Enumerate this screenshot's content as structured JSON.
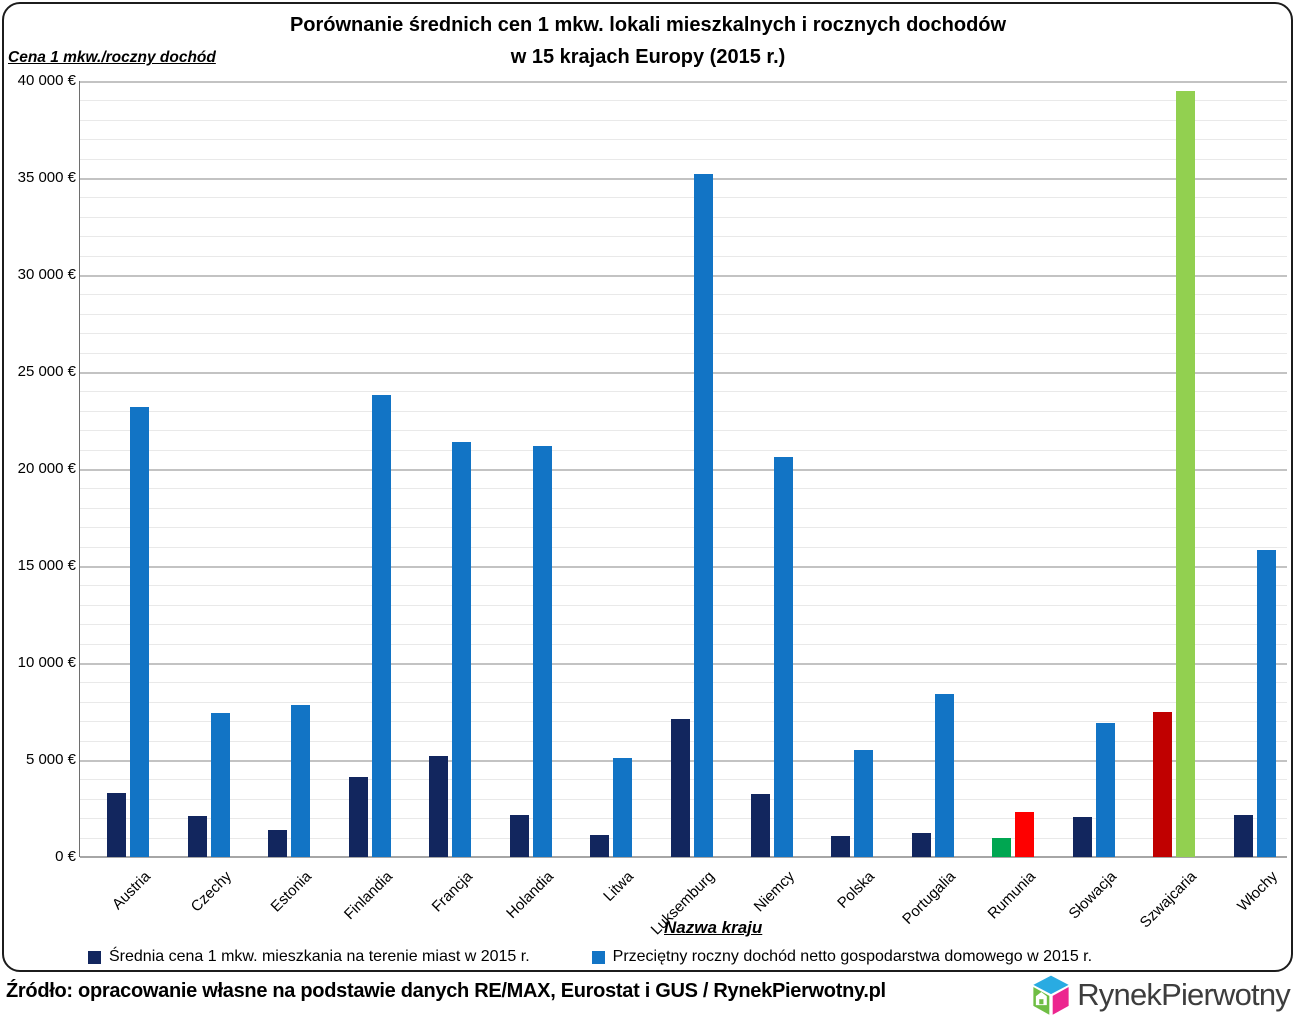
{
  "title": {
    "line1": "Porównanie średnich cen 1 mkw. lokali mieszkalnych i rocznych dochodów",
    "line2": "w 15 krajach Europy (2015 r.)"
  },
  "y_axis_label": "Cena 1 mkw./roczny dochód",
  "x_axis_title": "Nazwa kraju",
  "footer": {
    "source_text": "Źródło: opracowanie własne na podstawie danych RE/MAX, Eurostat i GUS / RynekPierwotny.pl",
    "logo_text": "RynekPierwotny"
  },
  "chart_data": {
    "type": "bar",
    "title": "Porównanie średnich cen 1 mkw. lokali mieszkalnych i rocznych dochodów w 15 krajach Europy (2015 r.)",
    "xlabel": "Nazwa kraju",
    "ylabel": "Cena 1 mkw./roczny dochód",
    "ylim": [
      0,
      40000
    ],
    "ytick_step": 5000,
    "minor_gridline_step": 1000,
    "grid": true,
    "legend_position": "bottom",
    "currency_suffix": " €",
    "ytick_labels_top_down": [
      "40 000 €",
      "35 000 €",
      "30 000 €",
      "25 000 €",
      "20 000 €",
      "15 000 €",
      "10 000 €",
      "5 000 €",
      "0 €"
    ],
    "categories": [
      "Austria",
      "Czechy",
      "Estonia",
      "Finlandia",
      "Francja",
      "Holandia",
      "Litwa",
      "Luksemburg",
      "Niemcy",
      "Polska",
      "Portugalia",
      "Rumunia",
      "Słowacja",
      "Szwajcaria",
      "Włochy"
    ],
    "series": [
      {
        "name": "Średnia cena 1 mkw. mieszkania na terenie miast w 2015 r.",
        "legend_color": "#12265e",
        "values": [
          3300,
          2100,
          1400,
          4100,
          5200,
          2150,
          1150,
          7100,
          3250,
          1100,
          1250,
          1000,
          2050,
          7500,
          2150
        ],
        "bar_colors": [
          "#12265e",
          "#12265e",
          "#12265e",
          "#12265e",
          "#12265e",
          "#12265e",
          "#12265e",
          "#12265e",
          "#12265e",
          "#12265e",
          "#12265e",
          "#00a651",
          "#12265e",
          "#c00000",
          "#12265e"
        ]
      },
      {
        "name": "Przeciętny roczny dochód netto gospodarstwa domowego w 2015 r.",
        "legend_color": "#1274c5",
        "values": [
          23200,
          7400,
          7850,
          23800,
          21400,
          21200,
          5100,
          35200,
          20600,
          5500,
          8400,
          2300,
          6900,
          39500,
          15800
        ],
        "bar_colors": [
          "#1274c5",
          "#1274c5",
          "#1274c5",
          "#1274c5",
          "#1274c5",
          "#1274c5",
          "#1274c5",
          "#1274c5",
          "#1274c5",
          "#1274c5",
          "#1274c5",
          "#fe0000",
          "#1274c5",
          "#92d050",
          "#1274c5"
        ]
      }
    ],
    "highlight_note_colors": {
      "rumunia_price": "#00a651",
      "rumunia_income": "#fe0000",
      "szwajcaria_price": "#c00000",
      "szwajcaria_income": "#92d050"
    }
  }
}
